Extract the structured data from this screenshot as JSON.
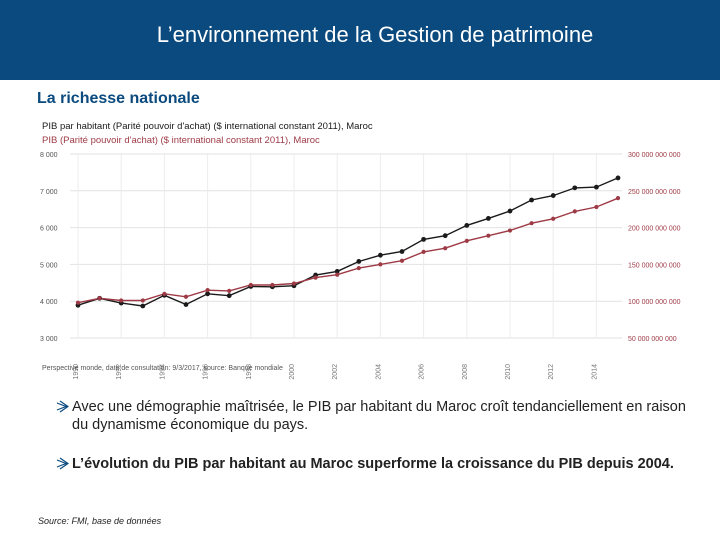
{
  "header": {
    "title": "L’environnement de la Gestion de patrimoine"
  },
  "subtitle": "La richesse nationale",
  "bullets": [
    {
      "text": "Avec une démographie maîtrisée, le PIB par habitant du Maroc croît tendanciellement en raison du dynamisme économique du pays."
    },
    {
      "text": "L’évolution du PIB par habitant au Maroc superforme la croissance du PIB depuis 2004."
    }
  ],
  "source": "Source: FMI, base de données",
  "chart_data": {
    "type": "line",
    "grid": true,
    "legend_position": "top-left",
    "footer": "Perspective monde, date de consultation: 9/3/2017, source: Banque mondiale",
    "y_left": {
      "ticks": [
        3000,
        4000,
        5000,
        6000,
        7000,
        8000
      ],
      "tick_labels": [
        "3 000",
        "4 000",
        "5 000",
        "6 000",
        "7 000",
        "8 000"
      ],
      "range": [
        3000,
        8000
      ]
    },
    "y_right": {
      "ticks": [
        50000000000,
        100000000000,
        150000000000,
        200000000000,
        250000000000,
        300000000000
      ],
      "tick_labels": [
        "50 000 000 000",
        "100 000 000 000",
        "150 000 000 000",
        "200 000 000 000",
        "250 000 000 000",
        "300 000 000 000"
      ],
      "range": [
        50000000000,
        300000000000
      ]
    },
    "x": [
      1990,
      1991,
      1992,
      1993,
      1994,
      1995,
      1996,
      1997,
      1998,
      1999,
      2000,
      2001,
      2002,
      2003,
      2004,
      2005,
      2006,
      2007,
      2008,
      2009,
      2010,
      2011,
      2012,
      2013,
      2014,
      2015
    ],
    "x_tick_labels": [
      "1990",
      "1992",
      "1994",
      "1996",
      "1998",
      "2000",
      "2002",
      "2004",
      "2006",
      "2008",
      "2010",
      "2012",
      "2014"
    ],
    "x_ticks": [
      1990,
      1992,
      1994,
      1996,
      1998,
      2000,
      2002,
      2004,
      2006,
      2008,
      2010,
      2012,
      2014
    ],
    "series": [
      {
        "name": "PIB par habitant (Parité pouvoir d'achat) ($ international constant 2011), Maroc",
        "axis": "left",
        "color": "#1a1a1a",
        "values": [
          3890,
          4080,
          3950,
          3870,
          4160,
          3910,
          4200,
          4150,
          4400,
          4390,
          4420,
          4710,
          4810,
          5080,
          5250,
          5350,
          5680,
          5780,
          6060,
          6250,
          6450,
          6750,
          6870,
          7080,
          7100,
          7350
        ]
      },
      {
        "name": "PIB (Parité pouvoir d'achat) ($ international constant 2011), Maroc",
        "axis": "right",
        "color": "#9e3a45",
        "values": [
          98000000000,
          104000000000,
          101000000000,
          101000000000,
          110000000000,
          106000000000,
          115000000000,
          114000000000,
          122000000000,
          122000000000,
          124000000000,
          132000000000,
          136000000000,
          145000000000,
          150000000000,
          155000000000,
          167000000000,
          172000000000,
          182000000000,
          189000000000,
          196000000000,
          206000000000,
          212000000000,
          222000000000,
          228000000000,
          240000000000
        ]
      }
    ]
  }
}
